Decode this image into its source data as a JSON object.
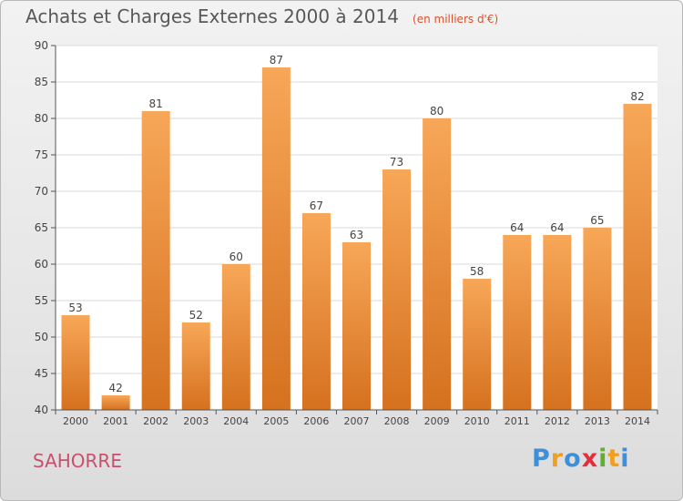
{
  "title": "Achats et Charges Externes 2000 à 2014",
  "unit_note": "(en milliers d'€)",
  "commune": "SAHORRE",
  "brand": {
    "letters": [
      "P",
      "r",
      "o",
      "x",
      "i",
      "t",
      "i"
    ],
    "colors": [
      "#3c8fd8",
      "#f0a020",
      "#3c8fd8",
      "#e03040",
      "#60b030",
      "#f0a020",
      "#3c8fd8"
    ]
  },
  "colors": {
    "bar_light": "#f7a758",
    "bar_dark": "#d5711f",
    "grid": "#d9d9d9",
    "axis": "#555555",
    "text": "#444444"
  },
  "chart_data": {
    "type": "bar",
    "categories": [
      "2000",
      "2001",
      "2002",
      "2003",
      "2004",
      "2005",
      "2006",
      "2007",
      "2008",
      "2009",
      "2010",
      "2011",
      "2012",
      "2013",
      "2014"
    ],
    "values": [
      53,
      42,
      81,
      52,
      60,
      87,
      67,
      63,
      73,
      80,
      58,
      64,
      64,
      65,
      82
    ],
    "data_labels": [
      "53",
      "42",
      "81",
      "52",
      "60",
      "87",
      "67",
      "63",
      "73",
      "80",
      "58",
      "64",
      "64",
      "65",
      "82"
    ],
    "ylim": [
      40,
      90
    ],
    "yticks": [
      40,
      45,
      50,
      55,
      60,
      65,
      70,
      75,
      80,
      85,
      90
    ],
    "grid": true,
    "xlabel": "",
    "ylabel": ""
  }
}
